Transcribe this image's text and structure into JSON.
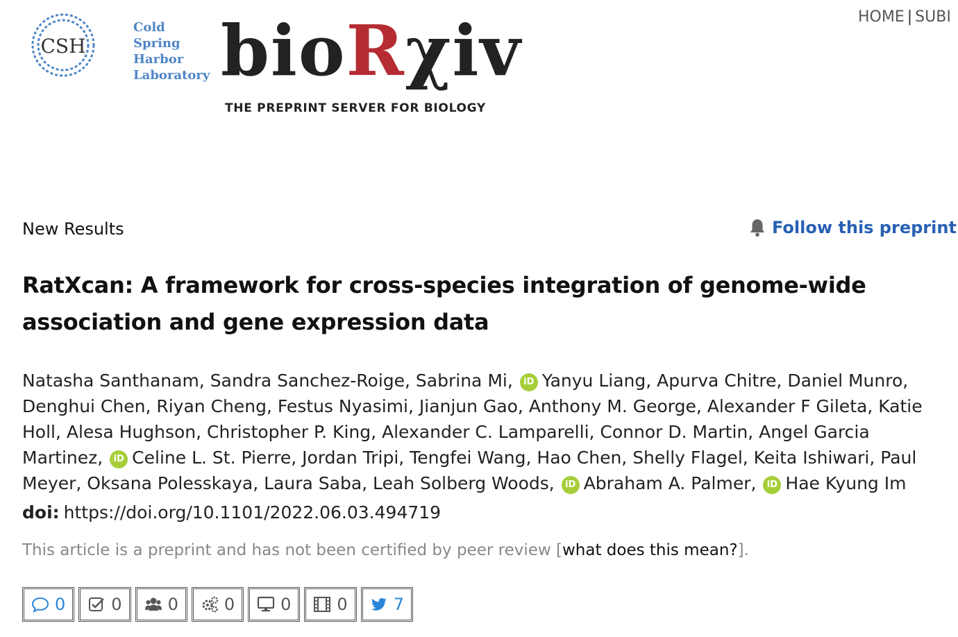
{
  "header": {
    "cshl_mark": "CSH",
    "cshl_lines": [
      "Cold",
      "Spring",
      "Harbor",
      "Laboratory"
    ],
    "brand_prefix": "bio",
    "brand_r": "R",
    "brand_suffix": "χiv",
    "tagline": "THE PREPRINT SERVER FOR BIOLOGY",
    "nav": {
      "home": "HOME",
      "separator": "|",
      "submit": "SUBI"
    }
  },
  "article": {
    "type": "New Results",
    "follow_label": "Follow this preprint",
    "title": "RatXcan: A framework for cross-species integration of genome-wide association and gene expression data",
    "orcid_badge": "iD",
    "authors_segments": [
      "Natasha Santhanam, Sandra Sanchez-Roige, Sabrina Mi,",
      "Yanyu Liang, Apurva Chitre, Daniel Munro, Denghui Chen, Riyan Cheng, Festus Nyasimi, Jianjun Gao, Anthony M. George, Alexander F Gileta, Katie Holl, Alesa Hughson, Christopher P. King, Alexander C. Lamparelli, Connor D. Martin, Angel Garcia Martinez,",
      "Celine L. St. Pierre, Jordan Tripi, Tengfei Wang, Hao Chen, Shelly Flagel, Keita Ishiwari, Paul Meyer, Oksana Polesskaya, Laura Saba, Leah Solberg Woods,",
      "Abraham A. Palmer,",
      "Hae Kyung Im"
    ],
    "doi_label": "doi:",
    "doi_url": "https://doi.org/10.1101/2022.06.03.494719",
    "disclaimer_text": "This article is a preprint and has not been certified by peer review [",
    "disclaimer_link": "what does this mean?",
    "disclaimer_end": "]."
  },
  "metrics": [
    {
      "icon": "comment-icon",
      "count": "0",
      "color": "#2a86d8"
    },
    {
      "icon": "check-square-icon",
      "count": "0",
      "color": "#555555"
    },
    {
      "icon": "users-icon",
      "count": "0",
      "color": "#555555"
    },
    {
      "icon": "gears-icon",
      "count": "0",
      "color": "#555555"
    },
    {
      "icon": "monitor-icon",
      "count": "0",
      "color": "#555555"
    },
    {
      "icon": "film-icon",
      "count": "0",
      "color": "#555555"
    },
    {
      "icon": "twitter-icon",
      "count": "7",
      "color": "#2a86d8"
    }
  ],
  "colors": {
    "brand_red": "#b52c32",
    "link_blue": "#2860b4",
    "orcid_green": "#a6ce39",
    "cshl_blue": "#4f86c6"
  }
}
